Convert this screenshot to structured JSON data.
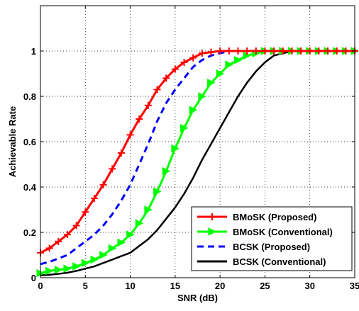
{
  "chart_data": {
    "type": "line",
    "xlabel": "SNR (dB)",
    "ylabel": "Achievable Rate",
    "xlim": [
      0,
      35
    ],
    "ylim": [
      0,
      1.2
    ],
    "xticks": [
      0,
      5,
      10,
      15,
      20,
      25,
      30,
      35
    ],
    "yticks": [
      0,
      0.2,
      0.4,
      0.6,
      0.8,
      1
    ],
    "grid": true,
    "legend_position": "bottom-right",
    "series": [
      {
        "name": "BMoSK (Proposed)",
        "color": "#ff0000",
        "line_style": "solid",
        "marker": "plus",
        "x": [
          0,
          1,
          2,
          3,
          4,
          5,
          6,
          7,
          8,
          9,
          10,
          11,
          12,
          13,
          14,
          15,
          16,
          17,
          18,
          19,
          20,
          21,
          22,
          23,
          24,
          25,
          26,
          27,
          28,
          29,
          30,
          31,
          32,
          33,
          34,
          35
        ],
        "values": [
          0.11,
          0.13,
          0.16,
          0.19,
          0.23,
          0.29,
          0.35,
          0.41,
          0.48,
          0.55,
          0.63,
          0.7,
          0.76,
          0.83,
          0.88,
          0.92,
          0.95,
          0.97,
          0.99,
          0.995,
          1.0,
          1.0,
          1.0,
          1.0,
          1.0,
          1.0,
          1.0,
          1.0,
          1.0,
          1.0,
          1.0,
          1.0,
          1.0,
          1.0,
          1.0,
          1.0
        ]
      },
      {
        "name": "BMoSK (Conventional)",
        "color": "#00ff00",
        "line_style": "solid",
        "marker": "triangle-right",
        "x": [
          0,
          1,
          2,
          3,
          4,
          5,
          6,
          7,
          8,
          9,
          10,
          11,
          12,
          13,
          14,
          15,
          16,
          17,
          18,
          19,
          20,
          21,
          22,
          23,
          24,
          25,
          26,
          27,
          28,
          29,
          30,
          31,
          32,
          33,
          34,
          35
        ],
        "values": [
          0.02,
          0.03,
          0.035,
          0.04,
          0.05,
          0.065,
          0.08,
          0.1,
          0.13,
          0.155,
          0.19,
          0.24,
          0.3,
          0.38,
          0.47,
          0.57,
          0.66,
          0.74,
          0.8,
          0.86,
          0.9,
          0.94,
          0.96,
          0.98,
          0.99,
          1.0,
          1.0,
          1.0,
          1.0,
          1.0,
          1.0,
          1.0,
          1.0,
          1.0,
          1.0,
          1.0
        ]
      },
      {
        "name": "BCSK (Proposed)",
        "color": "#0000ff",
        "line_style": "dashed",
        "marker": "none",
        "x": [
          0,
          1,
          2,
          3,
          4,
          5,
          6,
          7,
          8,
          9,
          10,
          11,
          12,
          13,
          14,
          15,
          16,
          17,
          18,
          19,
          20,
          21,
          22,
          23,
          24,
          25,
          26,
          27,
          28,
          29,
          30,
          31,
          32,
          33,
          34,
          35
        ],
        "values": [
          0.06,
          0.07,
          0.085,
          0.1,
          0.13,
          0.16,
          0.19,
          0.23,
          0.28,
          0.34,
          0.41,
          0.5,
          0.59,
          0.69,
          0.77,
          0.83,
          0.88,
          0.93,
          0.96,
          0.98,
          0.99,
          1.0,
          1.0,
          1.0,
          1.0,
          1.0,
          1.0,
          1.0,
          1.0,
          1.0,
          1.0,
          1.0,
          1.0,
          1.0,
          1.0,
          1.0
        ]
      },
      {
        "name": "BCSK (Conventional)",
        "color": "#000000",
        "line_style": "solid",
        "marker": "none",
        "x": [
          0,
          1,
          2,
          3,
          4,
          5,
          6,
          7,
          8,
          9,
          10,
          11,
          12,
          13,
          14,
          15,
          16,
          17,
          18,
          19,
          20,
          21,
          22,
          23,
          24,
          25,
          26,
          27,
          28,
          29,
          30,
          31,
          32,
          33,
          34,
          35
        ],
        "values": [
          0.01,
          0.013,
          0.017,
          0.022,
          0.03,
          0.04,
          0.05,
          0.065,
          0.08,
          0.095,
          0.11,
          0.14,
          0.17,
          0.21,
          0.26,
          0.31,
          0.37,
          0.44,
          0.52,
          0.59,
          0.66,
          0.73,
          0.8,
          0.86,
          0.91,
          0.95,
          0.98,
          0.99,
          1.0,
          1.0,
          1.0,
          1.0,
          1.0,
          1.0,
          1.0,
          1.0
        ]
      }
    ]
  }
}
